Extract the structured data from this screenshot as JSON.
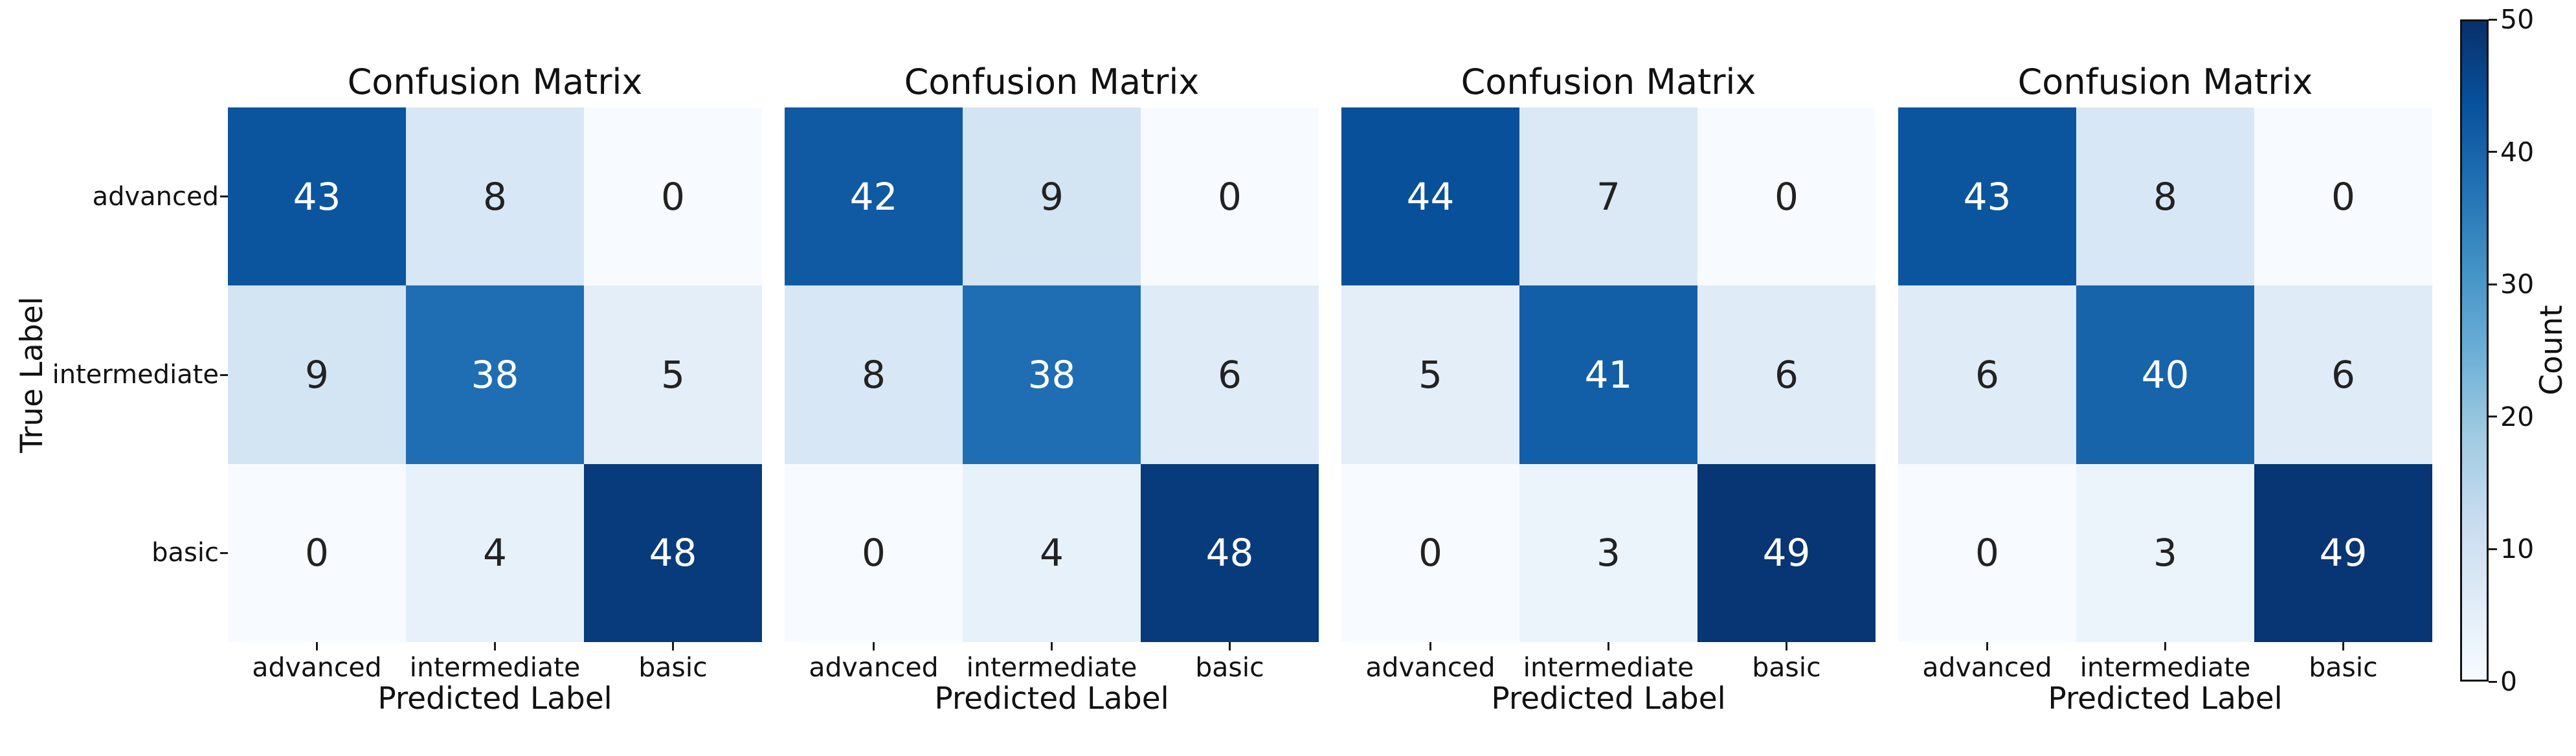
{
  "chart_data": {
    "type": "heatmap",
    "panels": [
      {
        "title": "Confusion Matrix",
        "values": [
          [
            43,
            8,
            0
          ],
          [
            9,
            38,
            5
          ],
          [
            0,
            4,
            48
          ]
        ]
      },
      {
        "title": "Confusion Matrix",
        "values": [
          [
            42,
            9,
            0
          ],
          [
            8,
            38,
            6
          ],
          [
            0,
            4,
            48
          ]
        ]
      },
      {
        "title": "Confusion Matrix",
        "values": [
          [
            44,
            7,
            0
          ],
          [
            5,
            41,
            6
          ],
          [
            0,
            3,
            49
          ]
        ]
      },
      {
        "title": "Confusion Matrix",
        "values": [
          [
            43,
            8,
            0
          ],
          [
            6,
            40,
            6
          ],
          [
            0,
            3,
            49
          ]
        ]
      }
    ],
    "x_categories": [
      "advanced",
      "intermediate",
      "basic"
    ],
    "y_categories": [
      "advanced",
      "intermediate",
      "basic"
    ],
    "xlabel": "Predicted Label",
    "ylabel": "True Label",
    "colorbar": {
      "label": "Count",
      "ticks": [
        0,
        10,
        20,
        30,
        40,
        50
      ],
      "vmin": 0,
      "vmax": 50
    },
    "colormap": {
      "name": "Blues",
      "stops": [
        [
          0.0,
          "#f7fbff"
        ],
        [
          0.125,
          "#deebf7"
        ],
        [
          0.25,
          "#c6dbef"
        ],
        [
          0.375,
          "#9ecae1"
        ],
        [
          0.5,
          "#6baed6"
        ],
        [
          0.625,
          "#4292c6"
        ],
        [
          0.75,
          "#2171b5"
        ],
        [
          0.875,
          "#08519c"
        ],
        [
          1.0,
          "#08306b"
        ]
      ]
    },
    "annotation_colors": {
      "on_dark": "#ffffff",
      "on_light": "#222222"
    },
    "annotation_white_text_threshold": 25,
    "background_color": "#ffffff",
    "grid": false,
    "legend_position": "right-colorbar"
  }
}
